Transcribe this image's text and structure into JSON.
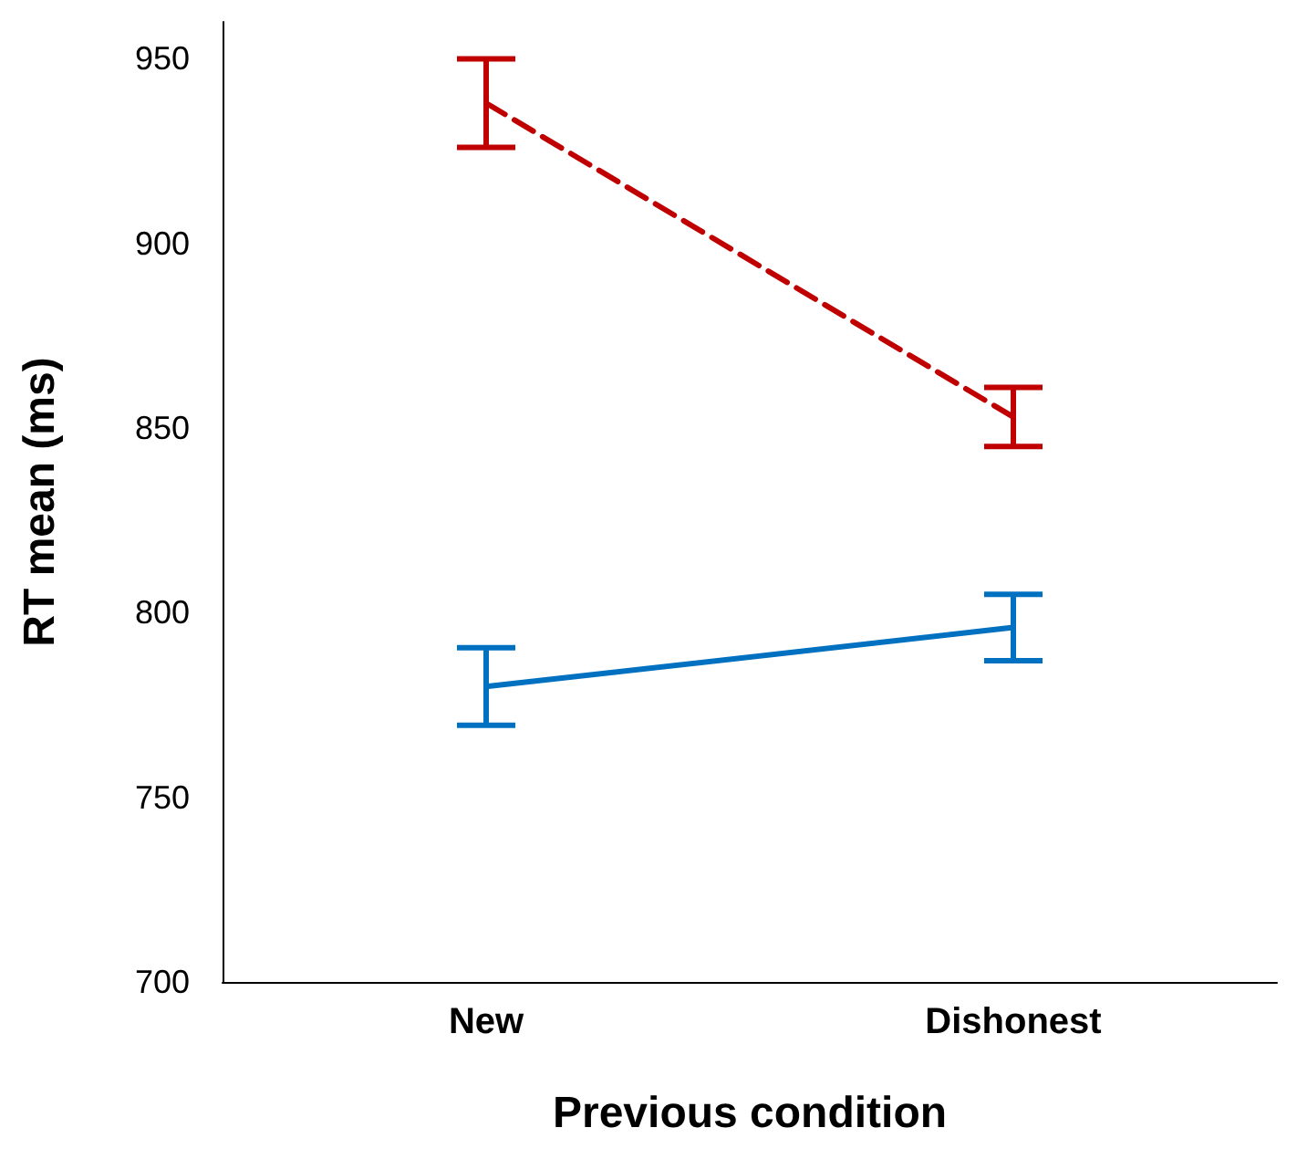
{
  "chart_data": {
    "type": "line",
    "xlabel": "Previous condition",
    "ylabel": "RT mean (ms)",
    "categories": [
      "New",
      "Dishonest"
    ],
    "ylim": [
      700,
      960
    ],
    "yticks": [
      700,
      750,
      800,
      850,
      900,
      950
    ],
    "marker": "none",
    "series": [
      {
        "color": "#c00000",
        "line_style": "dashed",
        "values": [
          938,
          853
        ],
        "errors": [
          12,
          8
        ]
      },
      {
        "color": "#0070c0",
        "line_style": "solid",
        "values": [
          780,
          796
        ],
        "errors": [
          10.5,
          9
        ]
      }
    ]
  }
}
